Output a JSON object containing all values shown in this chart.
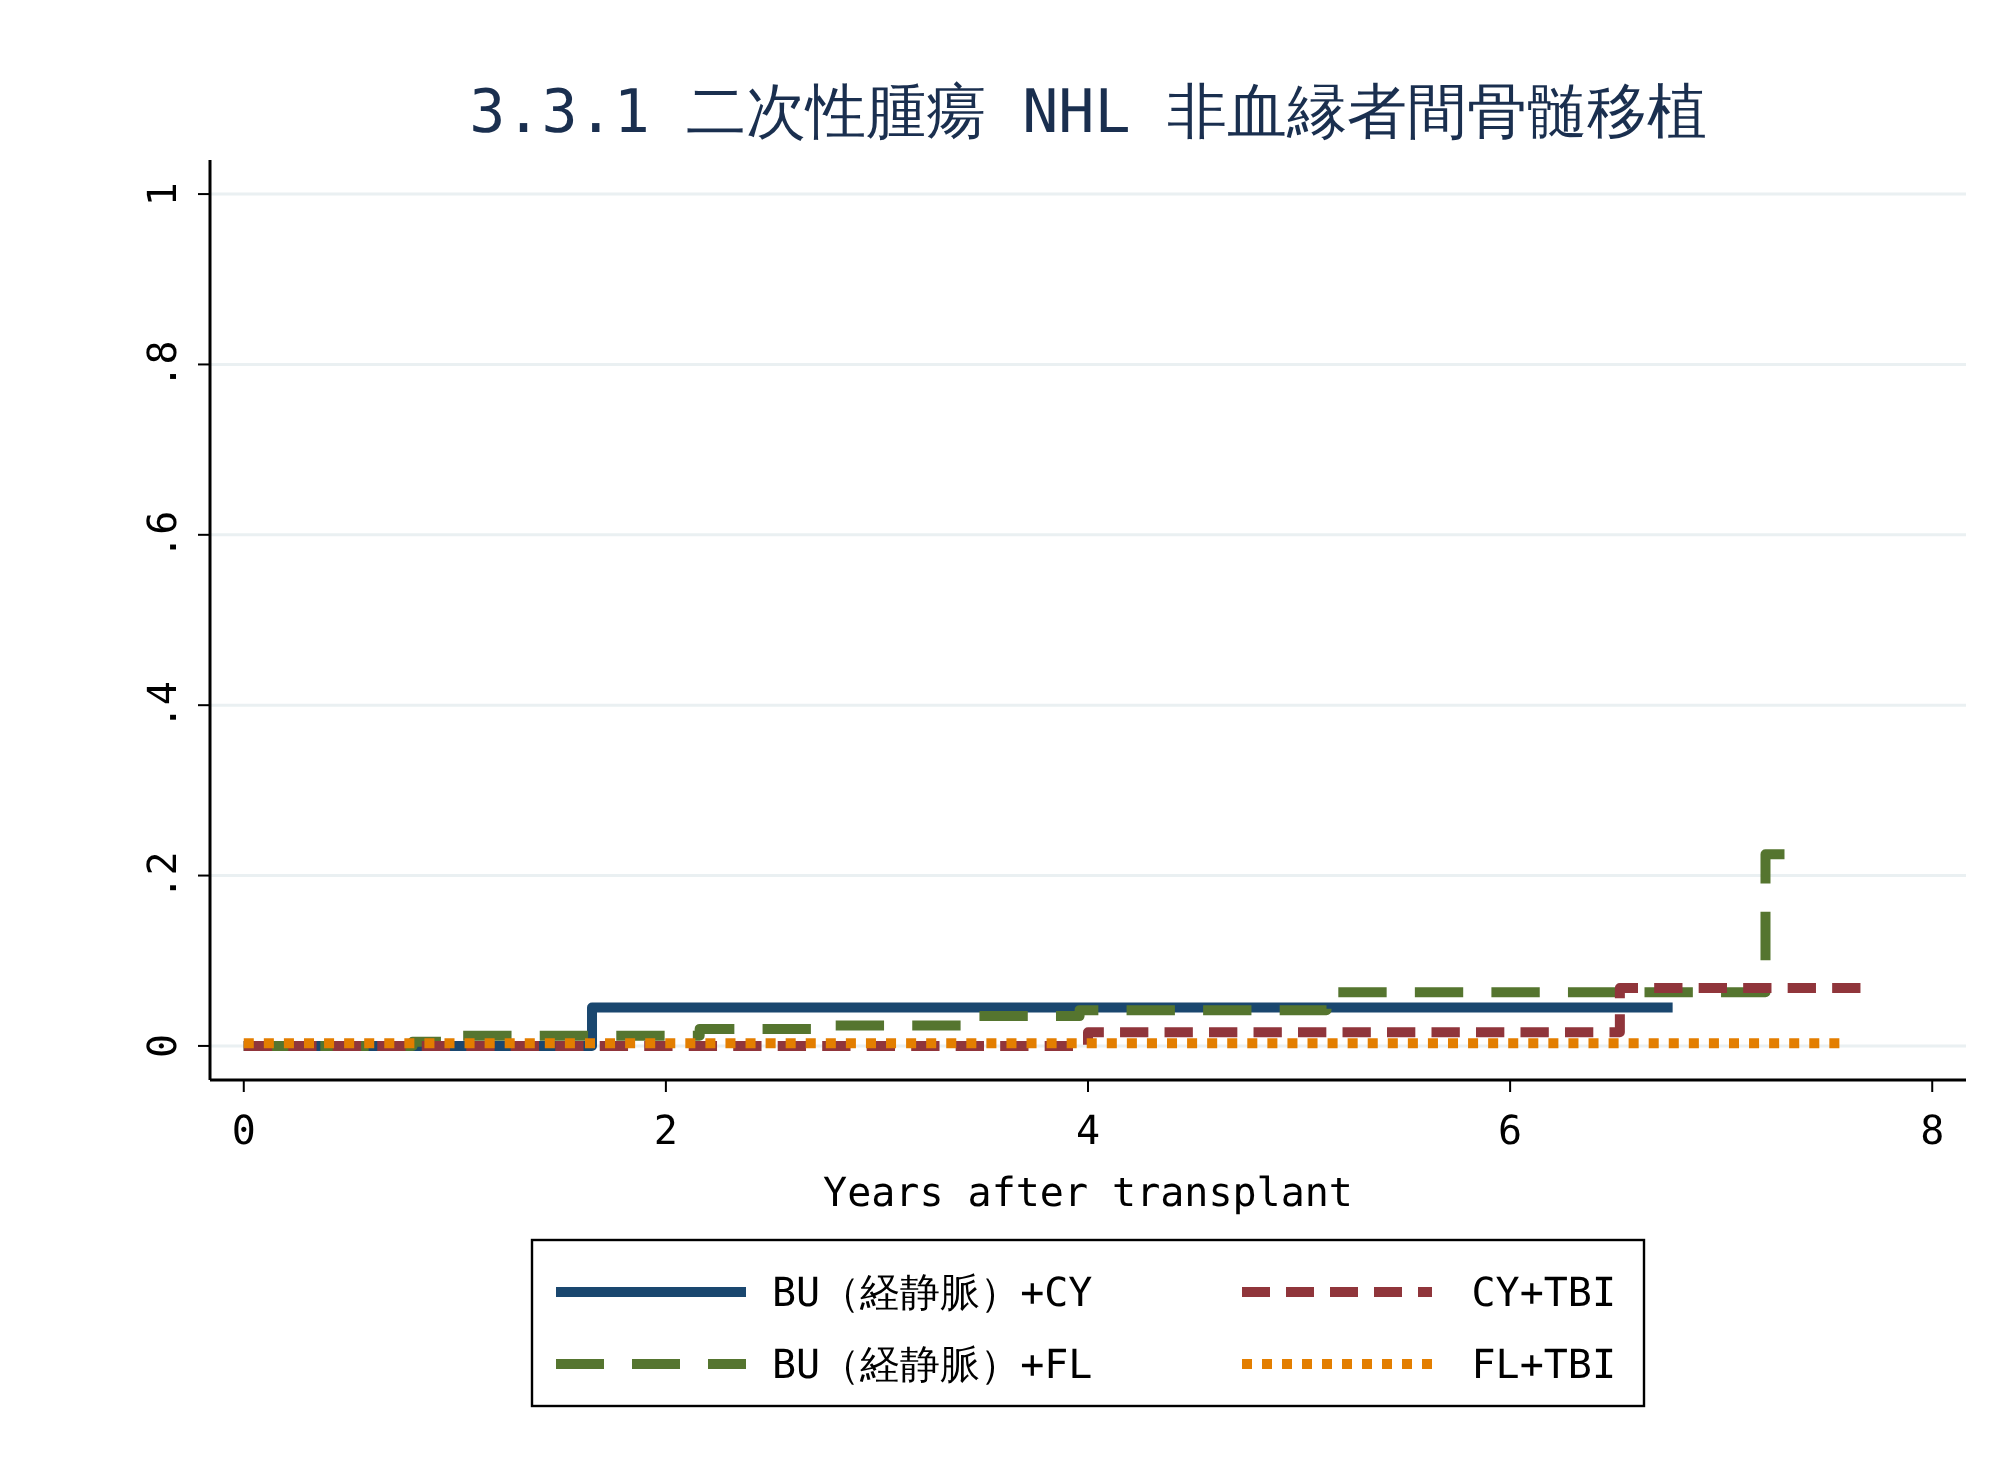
{
  "chart_data": {
    "type": "step",
    "title": "3.3.1 二次性腫瘍 NHL 非血縁者間骨髄移植",
    "xlabel": "Years after transplant",
    "xlim": [
      -0.16,
      8.16
    ],
    "xticks": [
      0,
      2,
      4,
      6,
      8
    ],
    "ylim": [
      -0.04,
      1.04
    ],
    "yticks": [
      {
        "value": 0,
        "label": "0"
      },
      {
        "value": 0.2,
        "label": ".2"
      },
      {
        "value": 0.4,
        "label": ".4"
      },
      {
        "value": 0.6,
        "label": ".6"
      },
      {
        "value": 0.8,
        "label": ".8"
      },
      {
        "value": 1,
        "label": "1"
      }
    ],
    "grid": "y",
    "legend": "bottom",
    "series": [
      {
        "name": "BU（経静脈）+CY",
        "color": "#1a476f",
        "line_style": "solid",
        "x": [
          0,
          1.65,
          6.77
        ],
        "values": [
          0,
          0.045,
          0.045
        ]
      },
      {
        "name": "BU（経静脈）+FL",
        "color": "#55752f",
        "line_style": "dashed",
        "x": [
          0,
          0.8,
          1.0,
          2.16,
          2.7,
          3.47,
          3.96,
          5.13,
          7.21,
          7.3
        ],
        "values": [
          0,
          0.005,
          0.012,
          0.02,
          0.024,
          0.035,
          0.042,
          0.063,
          0.225,
          0.225
        ]
      },
      {
        "name": "CY+TBI",
        "color": "#90353b",
        "line_style": "dashed",
        "x": [
          0,
          4.0,
          6.52,
          7.66
        ],
        "values": [
          0,
          0.016,
          0.068,
          0.068
        ]
      },
      {
        "name": "FL+TBI",
        "color": "#e37e00",
        "line_style": "dotted",
        "x": [
          0,
          7.56
        ],
        "values": [
          0.003,
          0.003
        ]
      }
    ]
  }
}
